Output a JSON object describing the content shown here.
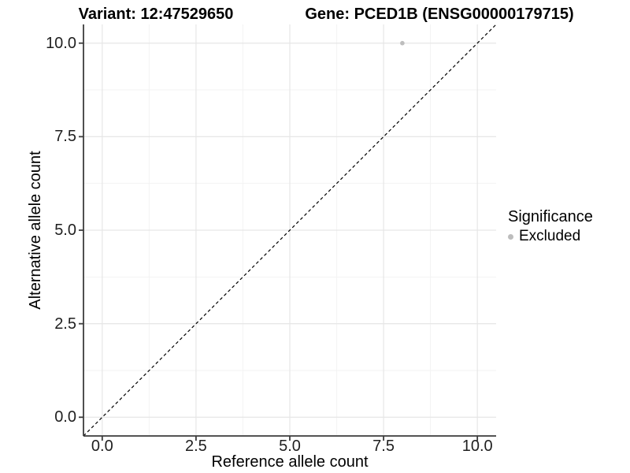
{
  "chart_data": {
    "type": "scatter",
    "title_left": "Variant: 12:47529650",
    "title_right": "Gene: PCED1B (ENSG00000179715)",
    "xlabel": "Reference allele count",
    "ylabel": "Alternative allele count",
    "xlim": [
      -0.5,
      10.5
    ],
    "ylim": [
      -0.5,
      10.5
    ],
    "x_tick_values": [
      0,
      2.5,
      5,
      7.5,
      10
    ],
    "x_tick_labels": [
      "0.0",
      "2.5",
      "5.0",
      "7.5",
      "10.0"
    ],
    "y_tick_values": [
      0,
      2.5,
      5,
      7.5,
      10
    ],
    "y_tick_labels": [
      "0.0",
      "2.5",
      "5.0",
      "7.5",
      "10.0"
    ],
    "grid": {
      "major": true,
      "minor": true
    },
    "identity_line": {
      "style": "dashed",
      "from": [
        -0.5,
        -0.5
      ],
      "to": [
        10.5,
        10.5
      ],
      "color": "#000000"
    },
    "series": [
      {
        "name": "Excluded",
        "color": "#bdbdbd",
        "points": [
          {
            "x": 8,
            "y": 10
          }
        ]
      }
    ],
    "legend": {
      "title": "Significance",
      "position": "right",
      "items": [
        {
          "label": "Excluded",
          "color": "#bdbdbd"
        }
      ]
    },
    "colors": {
      "grid_major": "#e6e6e6",
      "grid_minor": "#f3f3f3",
      "axis_line": "#3c3c3c",
      "tick_text": "#1f1f1f",
      "point": "#bdbdbd"
    }
  }
}
